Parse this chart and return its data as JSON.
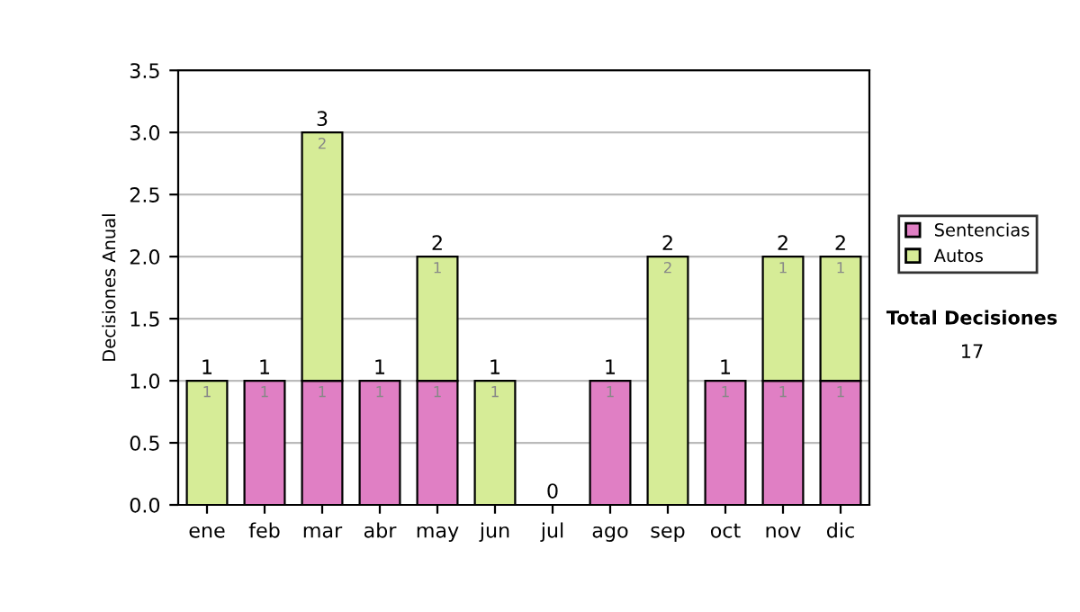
{
  "chart_data": {
    "type": "bar",
    "stacked": true,
    "ylabel": "Decisiones Anual",
    "categories": [
      "ene",
      "feb",
      "mar",
      "abr",
      "may",
      "jun",
      "jul",
      "ago",
      "sep",
      "oct",
      "nov",
      "dic"
    ],
    "series": [
      {
        "name": "Sentencias",
        "color": "#e07fc4",
        "values": [
          0,
          1,
          1,
          1,
          1,
          0,
          0,
          1,
          0,
          1,
          1,
          1
        ],
        "value_labels": [
          null,
          "1",
          "1",
          "1",
          "1",
          null,
          null,
          "1",
          null,
          "1",
          "1",
          "1"
        ]
      },
      {
        "name": "Autos",
        "color": "#d6ec97",
        "values": [
          1,
          0,
          2,
          0,
          1,
          1,
          0,
          0,
          2,
          0,
          1,
          1
        ],
        "value_labels": [
          "1",
          null,
          "2",
          null,
          "1",
          "1",
          null,
          null,
          "2",
          null,
          "1",
          "1"
        ]
      }
    ],
    "totals": [
      "1",
      "1",
      "3",
      "1",
      "2",
      "1",
      "0",
      "1",
      "2",
      "1",
      "2",
      "2"
    ],
    "ylim": [
      0,
      3.5
    ],
    "yticks": [
      "0.0",
      "0.5",
      "1.0",
      "1.5",
      "2.0",
      "2.5",
      "3.0",
      "3.5"
    ],
    "grid": "y",
    "legend": "right",
    "annotations": [
      "Total Decisiones",
      "17"
    ]
  }
}
